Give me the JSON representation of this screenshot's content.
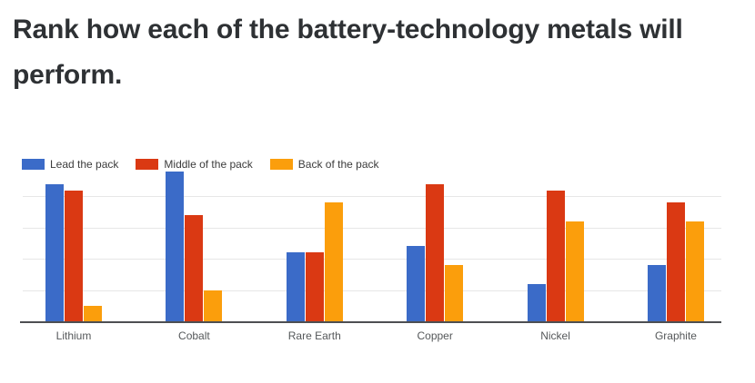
{
  "title": {
    "text": "Rank how each of the battery-technology metals will perform."
  },
  "colors": {
    "lead_blue": "#3b6bc8",
    "middle_red": "#da3913",
    "back_orange": "#fb9e0c",
    "axis_line": "#4d4f52",
    "gridline": "#e7e7e7",
    "title_text": "#2e3134",
    "axis_label_text": "#55585a"
  },
  "chart_data": {
    "type": "bar",
    "title": "Rank how each of the battery-technology metals will perform.",
    "categories": [
      "Lithium",
      "Cobalt",
      "Rare Earth",
      "Copper",
      "Nickel",
      "Graphite"
    ],
    "series": [
      {
        "name": "Lead the pack",
        "color": "#3b6bc8",
        "values": [
          44,
          48,
          22,
          24,
          12,
          18
        ]
      },
      {
        "name": "Middle of the pack",
        "color": "#da3913",
        "values": [
          42,
          34,
          22,
          44,
          42,
          38
        ]
      },
      {
        "name": "Back of the pack",
        "color": "#fb9e0c",
        "values": [
          5,
          10,
          38,
          18,
          32,
          32
        ]
      }
    ],
    "xlabel": "",
    "ylabel": "",
    "ylim": [
      0,
      48
    ],
    "gridlines": [
      10,
      20,
      30,
      40
    ],
    "grid": true,
    "legend_position": "top-left",
    "y_axis_labels_visible": false
  }
}
